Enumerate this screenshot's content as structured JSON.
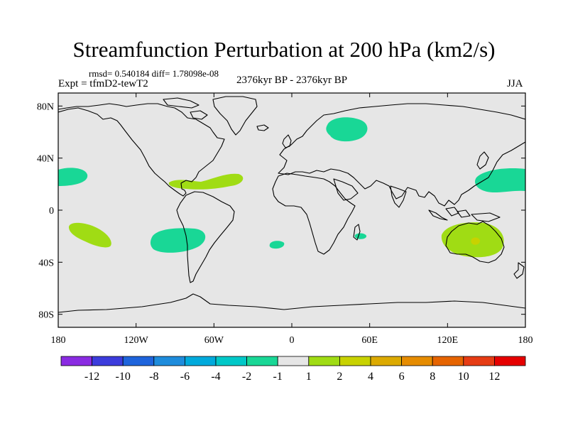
{
  "header": {
    "title": "Streamfunction Perturbation at 200 hPa (km2/s)",
    "stats": "rmsd= 0.540184 diff= 1.78098e-08",
    "left_label": "Expt = tfmD2-tewT2",
    "center_label": "2376kyr BP - 2376kyr BP",
    "right_label": "JJA"
  },
  "colors": {
    "ocean_land_bg": "#e6e6e6",
    "coast": "#000000",
    "neg_2_to_1": "#19d796",
    "pos_1_to_2": "#a0dc14",
    "pos_2_to_4": "#c8d200"
  },
  "chart_data": {
    "type": "heatmap",
    "title": "Streamfunction Perturbation at 200 hPa (km2/s)",
    "projection": "cylindrical-equidistant",
    "xlim": [
      -180,
      180
    ],
    "ylim": [
      -90,
      90
    ],
    "x_ticks": [
      {
        "value": -180,
        "label": "180"
      },
      {
        "value": -120,
        "label": "120W"
      },
      {
        "value": -60,
        "label": "60W"
      },
      {
        "value": 0,
        "label": "0"
      },
      {
        "value": 60,
        "label": "60E"
      },
      {
        "value": 120,
        "label": "120E"
      },
      {
        "value": 180,
        "label": "180"
      }
    ],
    "y_ticks": [
      {
        "value": 80,
        "label": "80N"
      },
      {
        "value": 40,
        "label": "40N"
      },
      {
        "value": 0,
        "label": "0"
      },
      {
        "value": -40,
        "label": "40S"
      },
      {
        "value": -80,
        "label": "80S"
      }
    ],
    "colorbar": {
      "levels": [
        "-12",
        "-10",
        "-8",
        "-6",
        "-4",
        "-2",
        "-1",
        "1",
        "2",
        "4",
        "6",
        "8",
        "10",
        "12"
      ],
      "colors": [
        "#8a2be2",
        "#3c3cdc",
        "#1e64dc",
        "#1e8cdc",
        "#00aadc",
        "#00c8c8",
        "#19d796",
        "#e6e6e6",
        "#a0dc14",
        "#c8d200",
        "#dcaa00",
        "#e68c00",
        "#e66400",
        "#e63c14",
        "#e60000"
      ]
    },
    "anomalies": [
      {
        "region": "Scandinavia / Northern Europe",
        "lon": 42,
        "lat": 62,
        "range": "-2 to -1"
      },
      {
        "region": "North-East Pacific",
        "lon": -172,
        "lat": 27,
        "range": "-2 to -1"
      },
      {
        "region": "North-West Pacific",
        "lon": 164,
        "lat": 28,
        "range": "-2 to -1"
      },
      {
        "region": "South-East Pacific",
        "lon": -102,
        "lat": -24,
        "range": "-2 to -1"
      },
      {
        "region": "South Atlantic",
        "lon": -12,
        "lat": -26,
        "range": "-2 to -1"
      },
      {
        "region": "Madagascar",
        "lon": 54,
        "lat": -20,
        "range": "-2 to -1"
      },
      {
        "region": "Caribbean / North Atlantic",
        "lon": -64,
        "lat": 22,
        "range": "1 to 2"
      },
      {
        "region": "South Pacific",
        "lon": -165,
        "lat": -18,
        "range": "1 to 2"
      },
      {
        "region": "Australia",
        "lon": 140,
        "lat": -22,
        "range": "1 to 2"
      },
      {
        "region": "Central Australia",
        "lon": 141,
        "lat": -24,
        "range": "2 to 4"
      }
    ]
  }
}
